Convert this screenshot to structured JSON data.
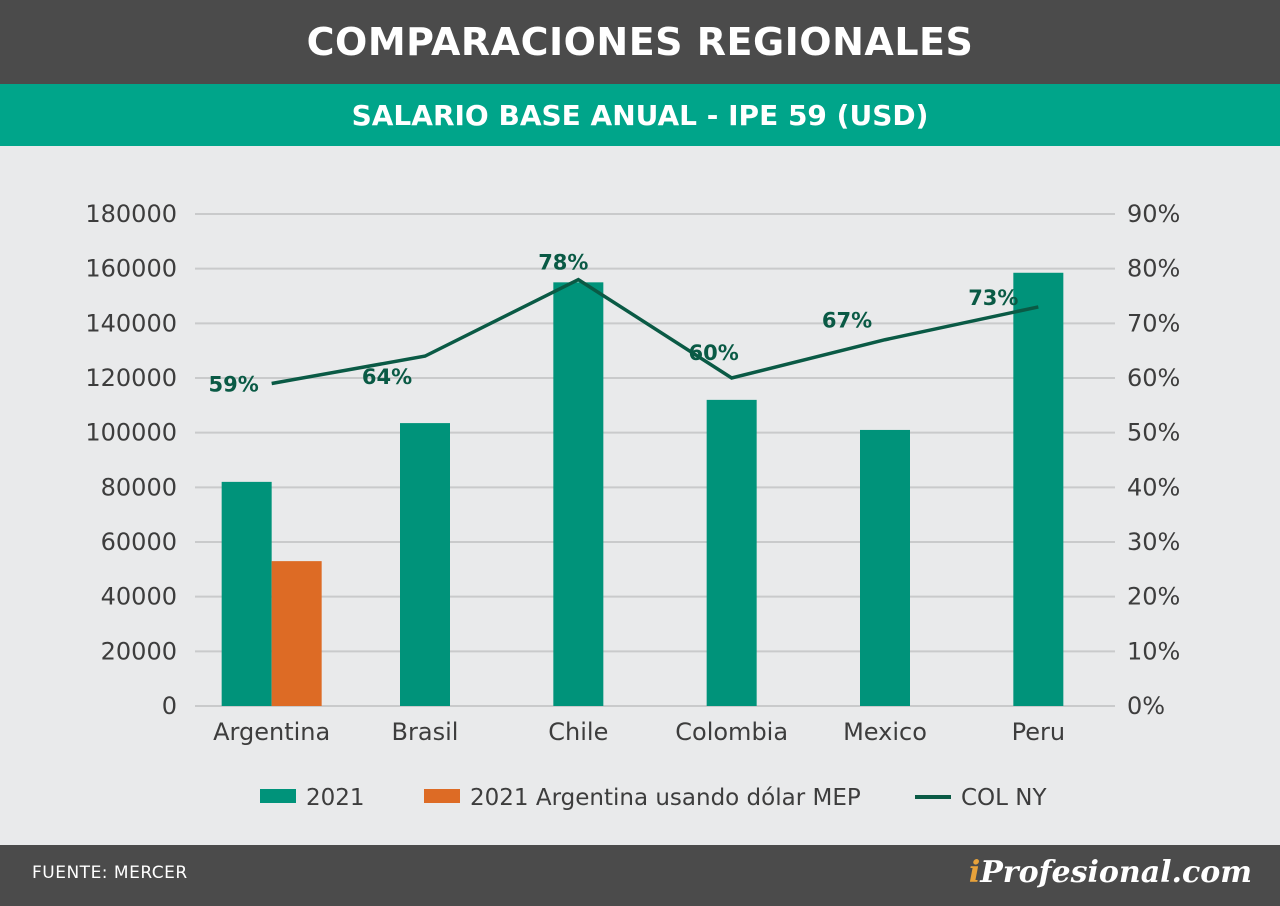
{
  "header": {
    "title": "COMPARACIONES REGIONALES",
    "subtitle": "SALARIO BASE ANUAL - IPE 59 (USD)"
  },
  "footer": {
    "source": "FUENTE: MERCER",
    "brand_mark": "i",
    "brand_rest": "Profesional.com"
  },
  "colors": {
    "bar_2021": "#00937a",
    "bar_mep": "#dd6b25",
    "line_col": "#0a5a45",
    "grid": "#c9cacb",
    "axis_text": "#3d3d3d"
  },
  "chart_data": {
    "type": "bar",
    "categories": [
      "Argentina",
      "Brasil",
      "Chile",
      "Colombia",
      "Mexico",
      "Peru"
    ],
    "series": [
      {
        "name": "2021",
        "type": "bar",
        "axis": "left",
        "values": [
          82000,
          103500,
          155000,
          112000,
          101000,
          158500
        ]
      },
      {
        "name": "2021 Argentina usando dólar MEP",
        "type": "bar",
        "axis": "left",
        "values": [
          53000,
          null,
          null,
          null,
          null,
          null
        ]
      },
      {
        "name": "COL NY",
        "type": "line",
        "axis": "right",
        "values": [
          59,
          64,
          78,
          60,
          67,
          73
        ],
        "labels": [
          "59%",
          "64%",
          "78%",
          "60%",
          "67%",
          "73%"
        ]
      }
    ],
    "y_left": {
      "lim": [
        0,
        180000
      ],
      "ticks": [
        "0",
        "20000",
        "40000",
        "60000",
        "80000",
        "100000",
        "120000",
        "140000",
        "160000",
        "180000"
      ]
    },
    "y_right": {
      "lim": [
        0,
        90
      ],
      "ticks": [
        "0%",
        "10%",
        "20%",
        "30%",
        "40%",
        "50%",
        "60%",
        "70%",
        "80%",
        "90%"
      ]
    },
    "grid": true,
    "legend_position": "bottom"
  }
}
